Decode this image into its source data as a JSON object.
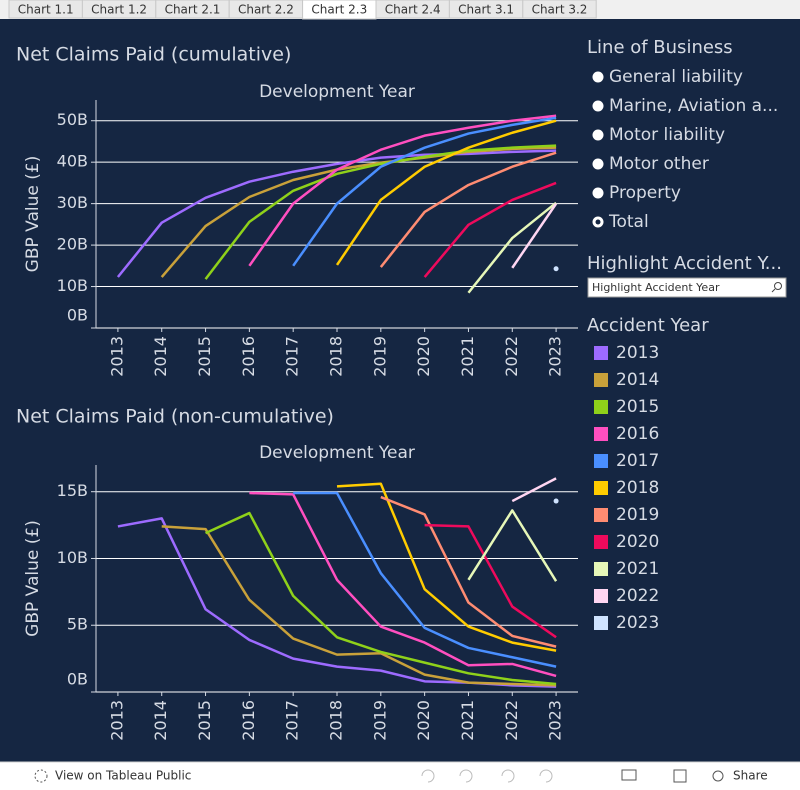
{
  "tabs": {
    "items": [
      "Chart 1.1",
      "Chart 1.2",
      "Chart 2.1",
      "Chart 2.2",
      "Chart 2.3",
      "Chart 2.4",
      "Chart 3.1",
      "Chart 3.2"
    ],
    "active": 4
  },
  "line_of_business": {
    "title": "Line of Business",
    "options": [
      "General liability",
      "Marine, Aviation a...",
      "Motor liability",
      "Motor other",
      "Property",
      "Total"
    ],
    "selected": 5
  },
  "highlight": {
    "title": "Highlight Accident Y...",
    "placeholder": "Highlight Accident Year"
  },
  "accident_year_legend": {
    "title": "Accident Year"
  },
  "footer": {
    "view": "View on Tableau Public",
    "share": "Share"
  },
  "chart_data": [
    {
      "type": "line",
      "title": "Net Claims Paid (cumulative)",
      "x_label": "Development Year",
      "y_label": "GBP Value (£)",
      "categories": [
        "2013",
        "2014",
        "2015",
        "2016",
        "2017",
        "2018",
        "2019",
        "2020",
        "2021",
        "2022",
        "2023"
      ],
      "ylim": [
        0,
        55
      ],
      "yticks": [
        {
          "value": 0,
          "label": "0B"
        },
        {
          "value": 10,
          "label": "10B"
        },
        {
          "value": 20,
          "label": "20B"
        },
        {
          "value": 30,
          "label": "30B"
        },
        {
          "value": 40,
          "label": "40B"
        },
        {
          "value": 50,
          "label": "50B"
        }
      ],
      "grid": true,
      "series": [
        {
          "name": "2013",
          "color": "#9d6bff",
          "values": [
            12.3,
            25.4,
            31.4,
            35.3,
            37.7,
            39.6,
            41.1,
            41.8,
            42.0,
            42.5,
            42.8
          ]
        },
        {
          "name": "2014",
          "color": "#c9a13a",
          "values": [
            null,
            12.3,
            24.6,
            31.6,
            35.7,
            38.2,
            39.9,
            41.1,
            42.5,
            43.2,
            43.5
          ]
        },
        {
          "name": "2015",
          "color": "#8fd11a",
          "values": [
            null,
            null,
            11.8,
            25.6,
            33.1,
            37.2,
            39.6,
            41.3,
            42.8,
            43.5,
            44.0
          ]
        },
        {
          "name": "2016",
          "color": "#ff4fc0",
          "values": [
            null,
            null,
            null,
            15.0,
            30.0,
            38.2,
            43.0,
            46.4,
            48.3,
            50.0,
            51.2
          ]
        },
        {
          "name": "2017",
          "color": "#4a8fff",
          "values": [
            null,
            null,
            null,
            null,
            15.0,
            30.0,
            38.9,
            43.5,
            46.9,
            49.0,
            50.7
          ]
        },
        {
          "name": "2018",
          "color": "#ffcc00",
          "values": [
            null,
            null,
            null,
            null,
            null,
            15.2,
            30.9,
            38.9,
            43.5,
            47.1,
            50.0
          ]
        },
        {
          "name": "2019",
          "color": "#ff8c72",
          "values": [
            null,
            null,
            null,
            null,
            null,
            null,
            14.7,
            28.0,
            34.5,
            38.9,
            42.3
          ]
        },
        {
          "name": "2020",
          "color": "#ee0a5c",
          "values": [
            null,
            null,
            null,
            null,
            null,
            null,
            null,
            12.3,
            24.9,
            30.9,
            35.0
          ]
        },
        {
          "name": "2021",
          "color": "#e6f7b8",
          "values": [
            null,
            null,
            null,
            null,
            null,
            null,
            null,
            null,
            8.5,
            21.7,
            30.2
          ]
        },
        {
          "name": "2022",
          "color": "#ffd6f2",
          "values": [
            null,
            null,
            null,
            null,
            null,
            null,
            null,
            null,
            null,
            14.5,
            30.0
          ]
        },
        {
          "name": "2023",
          "color": "#cfe3ff",
          "values": [
            null,
            null,
            null,
            null,
            null,
            null,
            null,
            null,
            null,
            null,
            14.3
          ]
        }
      ]
    },
    {
      "type": "line",
      "title": "Net Claims Paid (non-cumulative)",
      "x_label": "Development Year",
      "y_label": "GBP Value (£)",
      "categories": [
        "2013",
        "2014",
        "2015",
        "2016",
        "2017",
        "2018",
        "2019",
        "2020",
        "2021",
        "2022",
        "2023"
      ],
      "ylim": [
        0,
        17
      ],
      "yticks": [
        {
          "value": 0,
          "label": "0B"
        },
        {
          "value": 5,
          "label": "5B"
        },
        {
          "value": 10,
          "label": "10B"
        },
        {
          "value": 15,
          "label": "15B"
        }
      ],
      "grid": true,
      "series": [
        {
          "name": "2013",
          "color": "#9d6bff",
          "values": [
            12.4,
            13.0,
            6.2,
            3.9,
            2.5,
            1.9,
            1.6,
            0.8,
            0.7,
            0.5,
            0.4
          ]
        },
        {
          "name": "2014",
          "color": "#c9a13a",
          "values": [
            null,
            12.4,
            12.2,
            6.9,
            4.0,
            2.8,
            2.9,
            1.3,
            0.7,
            0.6,
            0.5
          ]
        },
        {
          "name": "2015",
          "color": "#8fd11a",
          "values": [
            null,
            null,
            11.9,
            13.4,
            7.2,
            4.1,
            3.0,
            2.2,
            1.4,
            0.9,
            0.6
          ]
        },
        {
          "name": "2016",
          "color": "#ff4fc0",
          "values": [
            null,
            null,
            null,
            14.9,
            14.8,
            8.4,
            4.9,
            3.7,
            2.0,
            2.1,
            1.2
          ]
        },
        {
          "name": "2017",
          "color": "#4a8fff",
          "values": [
            null,
            null,
            null,
            null,
            14.9,
            14.9,
            8.9,
            4.8,
            3.3,
            2.6,
            1.9
          ]
        },
        {
          "name": "2018",
          "color": "#ffcc00",
          "values": [
            null,
            null,
            null,
            null,
            null,
            15.4,
            15.6,
            7.7,
            4.9,
            3.7,
            3.1
          ]
        },
        {
          "name": "2019",
          "color": "#ff8c72",
          "values": [
            null,
            null,
            null,
            null,
            null,
            null,
            14.6,
            13.3,
            6.7,
            4.2,
            3.4
          ]
        },
        {
          "name": "2020",
          "color": "#ee0a5c",
          "values": [
            null,
            null,
            null,
            null,
            null,
            null,
            null,
            12.5,
            12.4,
            6.4,
            4.1
          ]
        },
        {
          "name": "2021",
          "color": "#e6f7b8",
          "values": [
            null,
            null,
            null,
            null,
            null,
            null,
            null,
            null,
            8.4,
            13.6,
            8.3
          ]
        },
        {
          "name": "2022",
          "color": "#ffd6f2",
          "values": [
            null,
            null,
            null,
            null,
            null,
            null,
            null,
            null,
            null,
            14.3,
            16.0
          ]
        },
        {
          "name": "2023",
          "color": "#cfe3ff",
          "values": [
            null,
            null,
            null,
            null,
            null,
            null,
            null,
            null,
            null,
            null,
            14.3
          ]
        }
      ]
    }
  ]
}
